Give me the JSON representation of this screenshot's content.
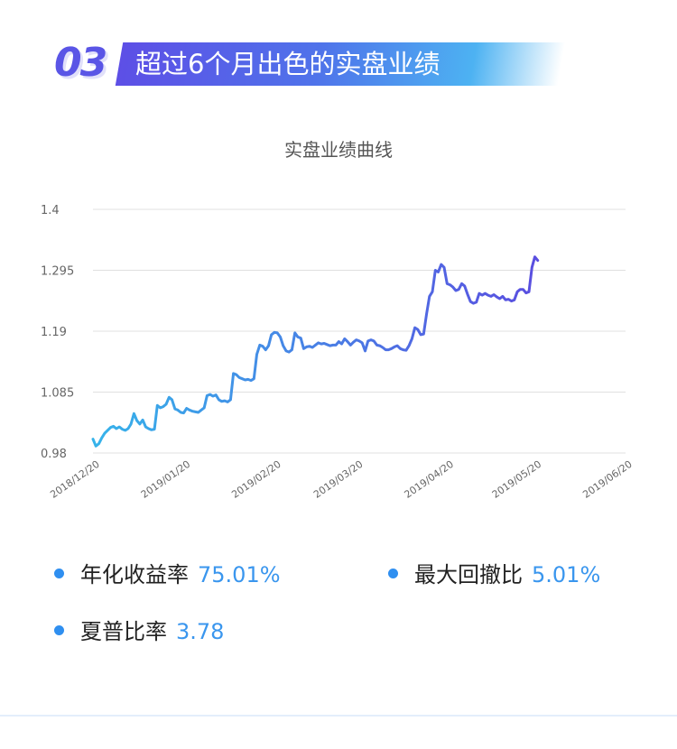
{
  "header": {
    "number": "03",
    "title": "超过6个月出色的实盘业绩"
  },
  "colors": {
    "accent": "#5a55e6",
    "line_start": "#36b3ea",
    "line_end": "#5a4ee0",
    "value_text": "#3a96ee",
    "grid": "#e0e0e0"
  },
  "chart_data": {
    "type": "line",
    "title": "实盘业绩曲线",
    "xlabel": "",
    "ylabel": "",
    "ylim": [
      0.98,
      1.4
    ],
    "y_ticks": [
      "1.4",
      "1.295",
      "1.19",
      "1.085",
      "0.98"
    ],
    "x_ticks": [
      "2018/12/20",
      "2019/01/20",
      "2019/02/20",
      "2019/03/20",
      "2019/04/20",
      "2019/05/20",
      "2019/06/20"
    ],
    "grid": true,
    "legend": "none",
    "series": [
      {
        "points": [
          [
            "2018/12/20",
            1.004
          ],
          [
            "2018/12/21",
            0.992
          ],
          [
            "2018/12/22",
            0.996
          ],
          [
            "2018/12/23",
            1.006
          ],
          [
            "2018/12/24",
            1.014
          ],
          [
            "2018/12/25",
            1.019
          ],
          [
            "2018/12/26",
            1.024
          ],
          [
            "2018/12/27",
            1.026
          ],
          [
            "2018/12/28",
            1.022
          ],
          [
            "2018/12/29",
            1.025
          ],
          [
            "2018/12/30",
            1.021
          ],
          [
            "2018/12/31",
            1.019
          ],
          [
            "2019/01/01",
            1.022
          ],
          [
            "2019/01/02",
            1.03
          ],
          [
            "2019/01/03",
            1.048
          ],
          [
            "2019/01/04",
            1.036
          ],
          [
            "2019/01/05",
            1.03
          ],
          [
            "2019/01/06",
            1.037
          ],
          [
            "2019/01/07",
            1.025
          ],
          [
            "2019/01/08",
            1.022
          ],
          [
            "2019/01/09",
            1.02
          ],
          [
            "2019/01/10",
            1.021
          ],
          [
            "2019/01/11",
            1.062
          ],
          [
            "2019/01/12",
            1.058
          ],
          [
            "2019/01/13",
            1.06
          ],
          [
            "2019/01/14",
            1.064
          ],
          [
            "2019/01/15",
            1.076
          ],
          [
            "2019/01/16",
            1.072
          ],
          [
            "2019/01/17",
            1.056
          ],
          [
            "2019/01/18",
            1.054
          ],
          [
            "2019/01/19",
            1.05
          ],
          [
            "2019/01/20",
            1.049
          ],
          [
            "2019/01/21",
            1.057
          ],
          [
            "2019/01/22",
            1.054
          ],
          [
            "2019/01/23",
            1.052
          ],
          [
            "2019/01/24",
            1.051
          ],
          [
            "2019/01/25",
            1.05
          ],
          [
            "2019/01/26",
            1.054
          ],
          [
            "2019/01/27",
            1.058
          ],
          [
            "2019/01/28",
            1.079
          ],
          [
            "2019/01/29",
            1.081
          ],
          [
            "2019/01/30",
            1.078
          ],
          [
            "2019/01/31",
            1.08
          ],
          [
            "2019/02/01",
            1.072
          ],
          [
            "2019/02/02",
            1.069
          ],
          [
            "2019/02/03",
            1.07
          ],
          [
            "2019/02/04",
            1.068
          ],
          [
            "2019/02/05",
            1.072
          ],
          [
            "2019/02/06",
            1.117
          ],
          [
            "2019/02/07",
            1.115
          ],
          [
            "2019/02/08",
            1.11
          ],
          [
            "2019/02/09",
            1.108
          ],
          [
            "2019/02/10",
            1.106
          ],
          [
            "2019/02/11",
            1.107
          ],
          [
            "2019/02/12",
            1.105
          ],
          [
            "2019/02/13",
            1.108
          ],
          [
            "2019/02/14",
            1.15
          ],
          [
            "2019/02/15",
            1.166
          ],
          [
            "2019/02/16",
            1.164
          ],
          [
            "2019/02/17",
            1.158
          ],
          [
            "2019/02/18",
            1.165
          ],
          [
            "2019/02/19",
            1.184
          ],
          [
            "2019/02/20",
            1.188
          ],
          [
            "2019/02/21",
            1.187
          ],
          [
            "2019/02/22",
            1.18
          ],
          [
            "2019/02/23",
            1.165
          ],
          [
            "2019/02/24",
            1.156
          ],
          [
            "2019/02/25",
            1.154
          ],
          [
            "2019/02/26",
            1.158
          ],
          [
            "2019/02/27",
            1.187
          ],
          [
            "2019/02/28",
            1.18
          ],
          [
            "2019/03/01",
            1.178
          ],
          [
            "2019/03/02",
            1.16
          ],
          [
            "2019/03/03",
            1.163
          ],
          [
            "2019/03/04",
            1.164
          ],
          [
            "2019/03/05",
            1.162
          ],
          [
            "2019/03/06",
            1.166
          ],
          [
            "2019/03/07",
            1.17
          ],
          [
            "2019/03/08",
            1.168
          ],
          [
            "2019/03/09",
            1.169
          ],
          [
            "2019/03/10",
            1.167
          ],
          [
            "2019/03/11",
            1.165
          ],
          [
            "2019/03/12",
            1.166
          ],
          [
            "2019/03/13",
            1.166
          ],
          [
            "2019/03/14",
            1.172
          ],
          [
            "2019/03/15",
            1.168
          ],
          [
            "2019/03/16",
            1.177
          ],
          [
            "2019/03/17",
            1.172
          ],
          [
            "2019/03/18",
            1.166
          ],
          [
            "2019/03/19",
            1.171
          ],
          [
            "2019/03/20",
            1.175
          ],
          [
            "2019/03/21",
            1.173
          ],
          [
            "2019/03/22",
            1.17
          ],
          [
            "2019/03/23",
            1.156
          ],
          [
            "2019/03/24",
            1.173
          ],
          [
            "2019/03/25",
            1.175
          ],
          [
            "2019/03/26",
            1.173
          ],
          [
            "2019/03/27",
            1.166
          ],
          [
            "2019/03/28",
            1.165
          ],
          [
            "2019/03/29",
            1.162
          ],
          [
            "2019/03/30",
            1.158
          ],
          [
            "2019/03/31",
            1.158
          ],
          [
            "2019/04/01",
            1.16
          ],
          [
            "2019/04/02",
            1.163
          ],
          [
            "2019/04/03",
            1.165
          ],
          [
            "2019/04/04",
            1.16
          ],
          [
            "2019/04/05",
            1.158
          ],
          [
            "2019/04/06",
            1.157
          ],
          [
            "2019/04/07",
            1.165
          ],
          [
            "2019/04/08",
            1.177
          ],
          [
            "2019/04/09",
            1.196
          ],
          [
            "2019/04/10",
            1.193
          ],
          [
            "2019/04/11",
            1.184
          ],
          [
            "2019/04/12",
            1.185
          ],
          [
            "2019/04/13",
            1.22
          ],
          [
            "2019/04/14",
            1.25
          ],
          [
            "2019/04/15",
            1.258
          ],
          [
            "2019/04/16",
            1.295
          ],
          [
            "2019/04/17",
            1.292
          ],
          [
            "2019/04/18",
            1.305
          ],
          [
            "2019/04/19",
            1.3
          ],
          [
            "2019/04/20",
            1.272
          ],
          [
            "2019/04/21",
            1.27
          ],
          [
            "2019/04/22",
            1.266
          ],
          [
            "2019/04/23",
            1.26
          ],
          [
            "2019/04/24",
            1.262
          ],
          [
            "2019/04/25",
            1.272
          ],
          [
            "2019/04/26",
            1.268
          ],
          [
            "2019/04/27",
            1.254
          ],
          [
            "2019/04/28",
            1.241
          ],
          [
            "2019/04/29",
            1.238
          ],
          [
            "2019/04/30",
            1.24
          ],
          [
            "2019/05/01",
            1.255
          ],
          [
            "2019/05/02",
            1.252
          ],
          [
            "2019/05/03",
            1.255
          ],
          [
            "2019/05/04",
            1.252
          ],
          [
            "2019/05/05",
            1.25
          ],
          [
            "2019/05/06",
            1.253
          ],
          [
            "2019/05/07",
            1.249
          ],
          [
            "2019/05/08",
            1.246
          ],
          [
            "2019/05/09",
            1.25
          ],
          [
            "2019/05/10",
            1.244
          ],
          [
            "2019/05/11",
            1.245
          ],
          [
            "2019/05/12",
            1.242
          ],
          [
            "2019/05/13",
            1.244
          ],
          [
            "2019/05/14",
            1.258
          ],
          [
            "2019/05/15",
            1.262
          ],
          [
            "2019/05/16",
            1.262
          ],
          [
            "2019/05/17",
            1.256
          ],
          [
            "2019/05/18",
            1.258
          ],
          [
            "2019/05/19",
            1.3
          ],
          [
            "2019/05/20",
            1.318
          ],
          [
            "2019/05/21",
            1.312
          ]
        ]
      }
    ]
  },
  "stats": [
    {
      "label": "年化收益率",
      "value": "75.01%"
    },
    {
      "label": "最大回撤比",
      "value": "5.01%"
    },
    {
      "label": "夏普比率",
      "value": "3.78"
    }
  ]
}
